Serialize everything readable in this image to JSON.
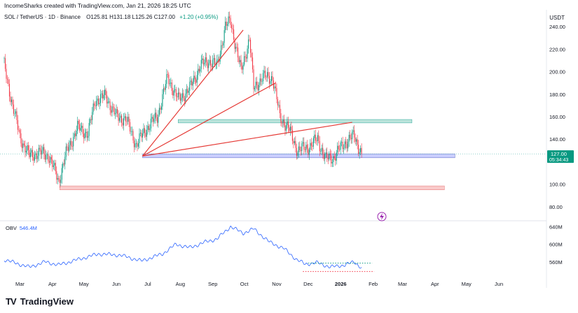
{
  "header": {
    "credit": "IncomeSharks created with TradingView.com, Jan 21, 2026 18:25 UTC",
    "symbol": "SOL / TetherUS · 1D · Binance",
    "ohlc": "O125.81 H131.18 L125.26 C127.00",
    "change": "+1.20 (+0.95%)",
    "currency": "USDT"
  },
  "footer": {
    "brand": "TradingView",
    "logo": "TV"
  },
  "colors": {
    "up": "#089981",
    "down": "#f23645",
    "obv": "#2962ff",
    "trendline": "#e53935",
    "zone_teal": "#9fd9cc",
    "zone_blue": "#b3b9ff",
    "zone_red": "#f6b4b4"
  },
  "chart_data": [
    {
      "type": "candlestick",
      "symbol": "SOL/USDT",
      "ylim": [
        70,
        255
      ],
      "y_ticks": [
        "240.00",
        "220.00",
        "200.00",
        "180.00",
        "160.00",
        "140.00",
        "100.00",
        "80.00"
      ],
      "last_price": "127.00",
      "countdown": "05:34:43",
      "x_months": [
        "Mar",
        "Apr",
        "May",
        "Jun",
        "Jul",
        "Aug",
        "Sep",
        "Oct",
        "Nov",
        "Dec",
        "2026",
        "Feb",
        "Mar",
        "Apr",
        "May",
        "Jun"
      ],
      "close_series": [
        {
          "date": "2025-02-14",
          "value": 205
        },
        {
          "date": "2025-02-22",
          "value": 170
        },
        {
          "date": "2025-03-01",
          "value": 142
        },
        {
          "date": "2025-03-10",
          "value": 125
        },
        {
          "date": "2025-03-18",
          "value": 128
        },
        {
          "date": "2025-03-28",
          "value": 126
        },
        {
          "date": "2025-04-07",
          "value": 103
        },
        {
          "date": "2025-04-15",
          "value": 130
        },
        {
          "date": "2025-04-25",
          "value": 150
        },
        {
          "date": "2025-05-05",
          "value": 145
        },
        {
          "date": "2025-05-12",
          "value": 175
        },
        {
          "date": "2025-05-22",
          "value": 178
        },
        {
          "date": "2025-06-01",
          "value": 160
        },
        {
          "date": "2025-06-10",
          "value": 158
        },
        {
          "date": "2025-06-20",
          "value": 135
        },
        {
          "date": "2025-06-30",
          "value": 150
        },
        {
          "date": "2025-07-10",
          "value": 160
        },
        {
          "date": "2025-07-20",
          "value": 195
        },
        {
          "date": "2025-07-30",
          "value": 175
        },
        {
          "date": "2025-08-10",
          "value": 185
        },
        {
          "date": "2025-08-20",
          "value": 205
        },
        {
          "date": "2025-08-28",
          "value": 210
        },
        {
          "date": "2025-09-05",
          "value": 205
        },
        {
          "date": "2025-09-13",
          "value": 240
        },
        {
          "date": "2025-09-18",
          "value": 245
        },
        {
          "date": "2025-09-28",
          "value": 200
        },
        {
          "date": "2025-10-06",
          "value": 230
        },
        {
          "date": "2025-10-10",
          "value": 185
        },
        {
          "date": "2025-10-18",
          "value": 195
        },
        {
          "date": "2025-10-28",
          "value": 195
        },
        {
          "date": "2025-11-04",
          "value": 160
        },
        {
          "date": "2025-11-12",
          "value": 150
        },
        {
          "date": "2025-11-21",
          "value": 130
        },
        {
          "date": "2025-12-01",
          "value": 133
        },
        {
          "date": "2025-12-10",
          "value": 140
        },
        {
          "date": "2025-12-18",
          "value": 122
        },
        {
          "date": "2025-12-25",
          "value": 124
        },
        {
          "date": "2026-01-05",
          "value": 137
        },
        {
          "date": "2026-01-14",
          "value": 143
        },
        {
          "date": "2026-01-21",
          "value": 127
        }
      ],
      "drawings": {
        "trendlines": [
          {
            "from": {
              "date": "2025-06-26",
              "value": 125
            },
            "to": {
              "date": "2025-09-30",
              "value": 237
            }
          },
          {
            "from": {
              "date": "2025-06-26",
              "value": 125
            },
            "to": {
              "date": "2025-10-31",
              "value": 190
            }
          },
          {
            "from": {
              "date": "2025-06-26",
              "value": 125
            },
            "to": {
              "date": "2026-01-12",
              "value": 155
            }
          }
        ],
        "zones": [
          {
            "color": "teal",
            "from": "2025-07-30",
            "to": "2026-03-10",
            "low": 154.5,
            "high": 157.5
          },
          {
            "color": "blue",
            "from": "2025-06-26",
            "to": "2026-04-20",
            "low": 123.5,
            "high": 127
          },
          {
            "color": "red",
            "from": "2025-04-08",
            "to": "2026-04-10",
            "low": 95,
            "high": 98.5
          }
        ]
      }
    },
    {
      "type": "line",
      "name": "OBV",
      "label": "OBV",
      "last_value": "546.4M",
      "ylim": [
        520,
        650
      ],
      "y_ticks": [
        "640M",
        "600M",
        "560M"
      ],
      "series": [
        {
          "date": "2025-02-14",
          "value": 565
        },
        {
          "date": "2025-02-28",
          "value": 555
        },
        {
          "date": "2025-03-10",
          "value": 548
        },
        {
          "date": "2025-03-25",
          "value": 560
        },
        {
          "date": "2025-04-07",
          "value": 553
        },
        {
          "date": "2025-04-25",
          "value": 565
        },
        {
          "date": "2025-05-15",
          "value": 578
        },
        {
          "date": "2025-06-05",
          "value": 575
        },
        {
          "date": "2025-06-25",
          "value": 562
        },
        {
          "date": "2025-07-15",
          "value": 578
        },
        {
          "date": "2025-07-28",
          "value": 600
        },
        {
          "date": "2025-08-10",
          "value": 592
        },
        {
          "date": "2025-08-25",
          "value": 605
        },
        {
          "date": "2025-09-05",
          "value": 612
        },
        {
          "date": "2025-09-18",
          "value": 640
        },
        {
          "date": "2025-09-30",
          "value": 625
        },
        {
          "date": "2025-10-10",
          "value": 635
        },
        {
          "date": "2025-10-25",
          "value": 605
        },
        {
          "date": "2025-11-08",
          "value": 590
        },
        {
          "date": "2025-11-20",
          "value": 565
        },
        {
          "date": "2025-11-28",
          "value": 555
        },
        {
          "date": "2025-12-10",
          "value": 558
        },
        {
          "date": "2025-12-22",
          "value": 548
        },
        {
          "date": "2026-01-05",
          "value": 553
        },
        {
          "date": "2026-01-14",
          "value": 560
        },
        {
          "date": "2026-01-21",
          "value": 546
        }
      ],
      "drawings": {
        "dotted_levels": [
          {
            "color": "green",
            "from": "2025-12-01",
            "to": "2026-01-31",
            "value": 557
          },
          {
            "color": "red",
            "from": "2025-11-26",
            "to": "2026-02-02",
            "value": 538
          }
        ]
      }
    }
  ]
}
